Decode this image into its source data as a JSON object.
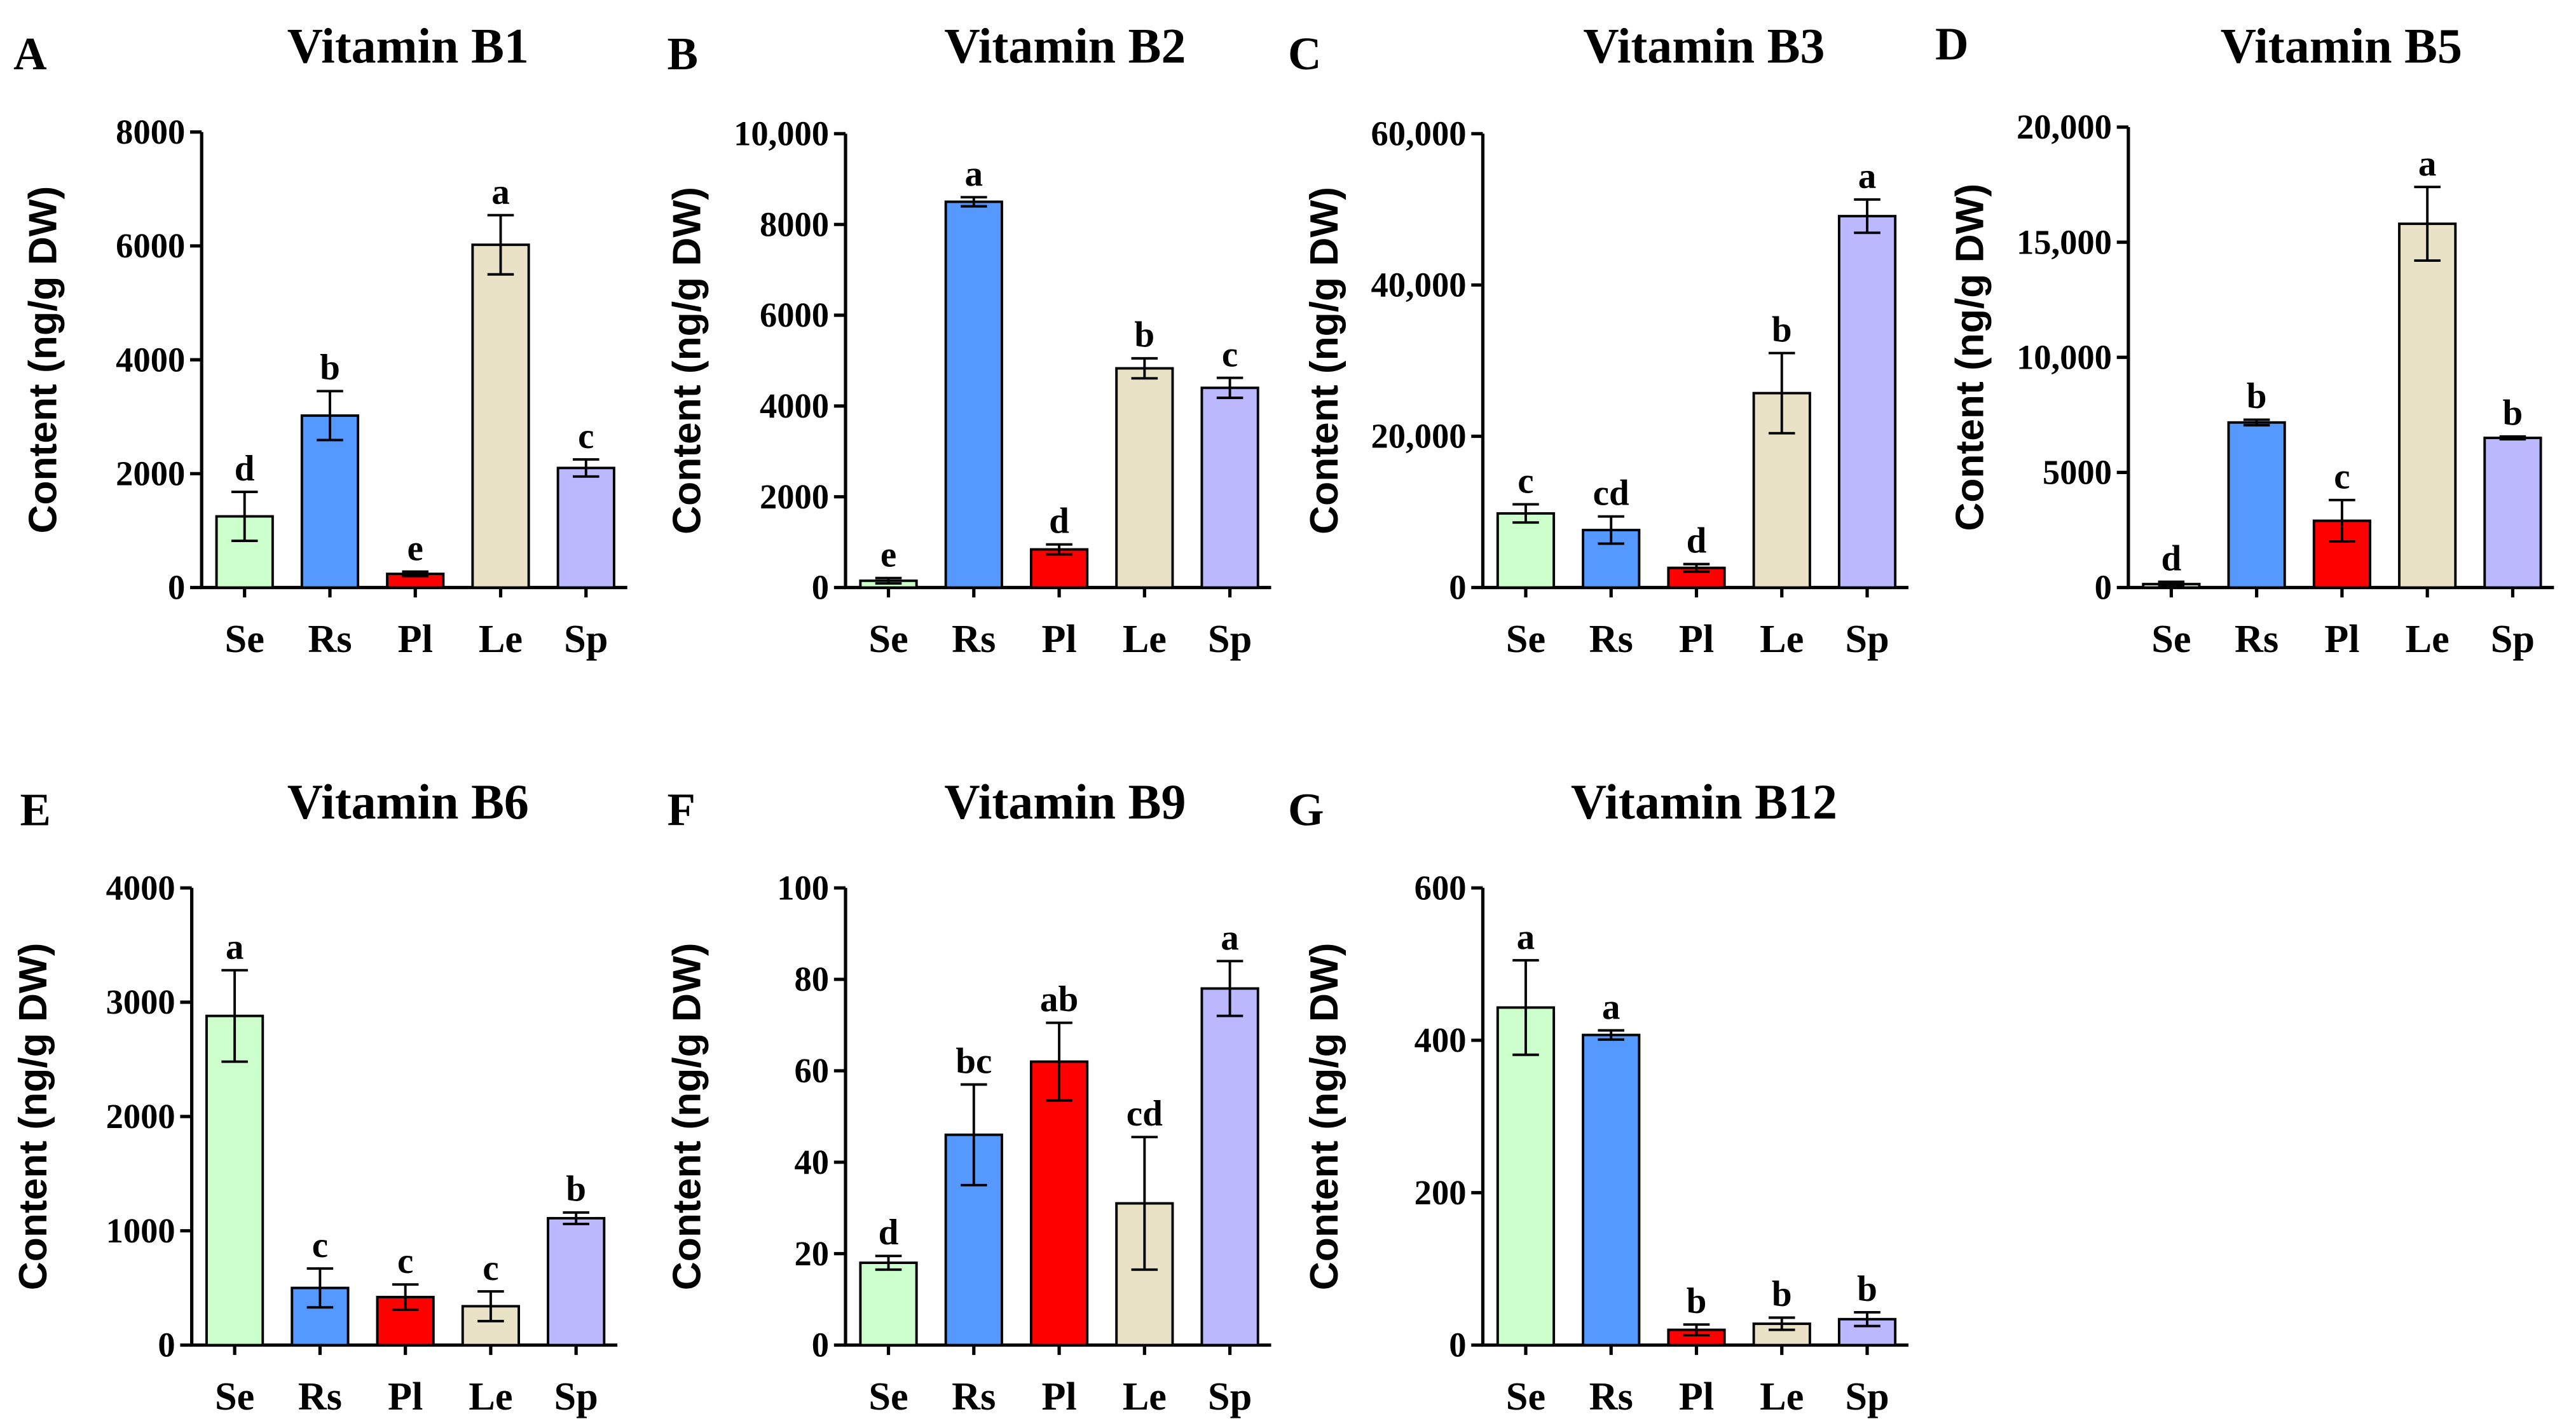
{
  "colors": {
    "Se": "#ccffcc",
    "Rs": "#5599ff",
    "Pl": "#ff0000",
    "Le": "#e9e2c6",
    "Sp": "#bcb8ff"
  },
  "chart_data": [
    {
      "panel": "A",
      "type": "bar",
      "title": "Vitamin B1",
      "ylabel": "Content (ng/g DW)",
      "categories": [
        "Se",
        "Rs",
        "Pl",
        "Le",
        "Sp"
      ],
      "values": [
        1250,
        3020,
        240,
        6020,
        2100
      ],
      "errors": [
        430,
        430,
        40,
        520,
        150
      ],
      "letters": [
        "d",
        "b",
        "e",
        "a",
        "c"
      ],
      "ylim": [
        0,
        8000
      ],
      "yticks": [
        0,
        2000,
        4000,
        6000,
        8000
      ],
      "ytick_labels": [
        "0",
        "2000",
        "4000",
        "6000",
        "8000"
      ]
    },
    {
      "panel": "B",
      "type": "bar",
      "title": "Vitamin B2",
      "ylabel": "Content (ng/g DW)",
      "categories": [
        "Se",
        "Rs",
        "Pl",
        "Le",
        "Sp"
      ],
      "values": [
        150,
        8500,
        840,
        4830,
        4400
      ],
      "errors": [
        60,
        100,
        110,
        220,
        220
      ],
      "letters": [
        "e",
        "a",
        "d",
        "b",
        "c"
      ],
      "ylim": [
        0,
        10000
      ],
      "yticks": [
        0,
        2000,
        4000,
        6000,
        8000,
        10000
      ],
      "ytick_labels": [
        "0",
        "2000",
        "4000",
        "6000",
        "8000",
        "10,000"
      ]
    },
    {
      "panel": "C",
      "type": "bar",
      "title": "Vitamin B3",
      "ylabel": "Content (ng/g DW)",
      "categories": [
        "Se",
        "Rs",
        "Pl",
        "Le",
        "Sp"
      ],
      "values": [
        9800,
        7600,
        2600,
        25700,
        49100
      ],
      "errors": [
        1200,
        1800,
        500,
        5300,
        2200
      ],
      "letters": [
        "c",
        "cd",
        "d",
        "b",
        "a"
      ],
      "ylim": [
        0,
        60000
      ],
      "yticks": [
        0,
        20000,
        40000,
        60000
      ],
      "ytick_labels": [
        "0",
        "20,000",
        "40,000",
        "60,000"
      ]
    },
    {
      "panel": "D",
      "type": "bar",
      "title": "Vitamin B5",
      "ylabel": "Content (ng/g DW)",
      "categories": [
        "Se",
        "Rs",
        "Pl",
        "Le",
        "Sp"
      ],
      "values": [
        150,
        7170,
        2900,
        15800,
        6500
      ],
      "errors": [
        100,
        120,
        900,
        1600,
        60
      ],
      "letters": [
        "d",
        "b",
        "c",
        "a",
        "b"
      ],
      "ylim": [
        0,
        20000
      ],
      "yticks": [
        0,
        5000,
        10000,
        15000,
        20000
      ],
      "ytick_labels": [
        "0",
        "5000",
        "10,000",
        "15,000",
        "20,000"
      ]
    },
    {
      "panel": "E",
      "type": "bar",
      "title": "Vitamin B6",
      "ylabel": "Content (ng/g DW)",
      "categories": [
        "Se",
        "Rs",
        "Pl",
        "Le",
        "Sp"
      ],
      "values": [
        2880,
        500,
        420,
        340,
        1110
      ],
      "errors": [
        400,
        170,
        110,
        130,
        50
      ],
      "letters": [
        "a",
        "c",
        "c",
        "c",
        "b"
      ],
      "ylim": [
        0,
        4000
      ],
      "yticks": [
        0,
        1000,
        2000,
        3000,
        4000
      ],
      "ytick_labels": [
        "0",
        "1000",
        "2000",
        "3000",
        "4000"
      ]
    },
    {
      "panel": "F",
      "type": "bar",
      "title": "Vitamin B9",
      "ylabel": "Content (ng/g DW)",
      "categories": [
        "Se",
        "Rs",
        "Pl",
        "Le",
        "Sp"
      ],
      "values": [
        18,
        46,
        62,
        31,
        78
      ],
      "errors": [
        1.5,
        11,
        8.5,
        14.5,
        6
      ],
      "letters": [
        "d",
        "bc",
        "ab",
        "cd",
        "a"
      ],
      "ylim": [
        0,
        100
      ],
      "yticks": [
        0,
        20,
        40,
        60,
        80,
        100
      ],
      "ytick_labels": [
        "0",
        "20",
        "40",
        "60",
        "80",
        "100"
      ]
    },
    {
      "panel": "G",
      "type": "bar",
      "title": "Vitamin B12",
      "ylabel": "Content (ng/g DW)",
      "categories": [
        "Se",
        "Rs",
        "Pl",
        "Le",
        "Sp"
      ],
      "values": [
        443,
        407,
        20,
        28,
        34
      ],
      "errors": [
        62,
        6,
        7,
        8,
        9
      ],
      "letters": [
        "a",
        "a",
        "b",
        "b",
        "b"
      ],
      "ylim": [
        0,
        600
      ],
      "yticks": [
        0,
        200,
        400,
        600
      ],
      "ytick_labels": [
        "0",
        "200",
        "400",
        "600"
      ]
    }
  ]
}
